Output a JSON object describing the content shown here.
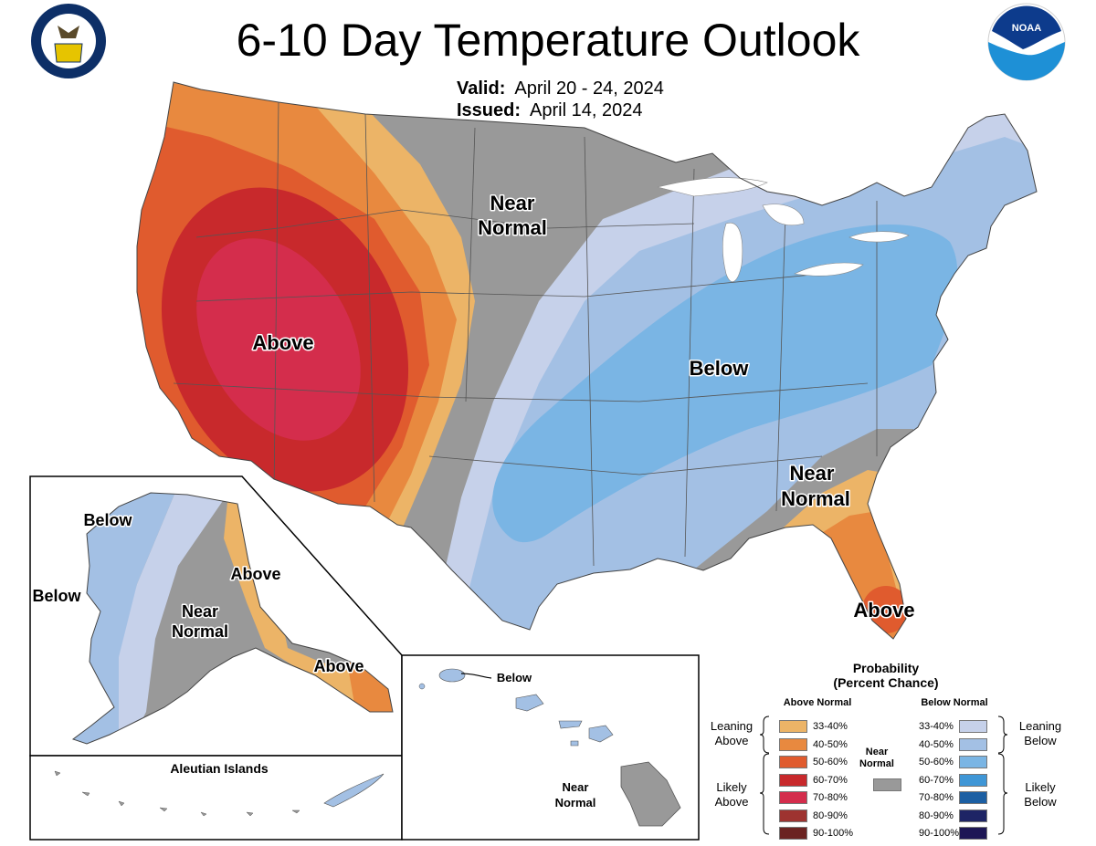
{
  "title": "6-10 Day Temperature Outlook",
  "valid_label": "Valid:",
  "valid_value": "April 20 - 24, 2024",
  "issued_label": "Issued:",
  "issued_value": "April 14, 2024",
  "logos": {
    "left": "doc-seal-icon",
    "right": "noaa-logo-icon",
    "noaa_text": "NOAA"
  },
  "map_labels": {
    "conus_above_west": "Above",
    "conus_near_normal_north_1": "Near",
    "conus_near_normal_north_2": "Normal",
    "conus_below": "Below",
    "conus_near_normal_se_1": "Near",
    "conus_near_normal_se_2": "Normal",
    "conus_above_florida": "Above",
    "ak_below_north": "Below",
    "ak_below_west": "Below",
    "ak_near_normal_1": "Near",
    "ak_near_normal_2": "Normal",
    "ak_above_east": "Above",
    "ak_above_panhandle": "Above",
    "aleutian_title": "Aleutian Islands",
    "hi_below": "Below",
    "hi_near_normal_1": "Near",
    "hi_near_normal_2": "Normal"
  },
  "legend": {
    "title_1": "Probability",
    "title_2": "(Percent Chance)",
    "above_header": "Above Normal",
    "below_header": "Below Normal",
    "near_header_1": "Near",
    "near_header_2": "Normal",
    "leaning_above_1": "Leaning",
    "leaning_above_2": "Above",
    "likely_above_1": "Likely",
    "likely_above_2": "Above",
    "leaning_below_1": "Leaning",
    "leaning_below_2": "Below",
    "likely_below_1": "Likely",
    "likely_below_2": "Below",
    "above": [
      {
        "label": "33-40%",
        "color": "#ecb467"
      },
      {
        "label": "40-50%",
        "color": "#e8893f"
      },
      {
        "label": "50-60%",
        "color": "#e05b2e"
      },
      {
        "label": "60-70%",
        "color": "#c8292c"
      },
      {
        "label": "70-80%",
        "color": "#d42d4c"
      },
      {
        "label": "80-90%",
        "color": "#9e3330"
      },
      {
        "label": "90-100%",
        "color": "#6b2321"
      }
    ],
    "below": [
      {
        "label": "33-40%",
        "color": "#c6d1ea"
      },
      {
        "label": "40-50%",
        "color": "#a3c0e4"
      },
      {
        "label": "50-60%",
        "color": "#7ab5e4"
      },
      {
        "label": "60-70%",
        "color": "#3f96d6"
      },
      {
        "label": "70-80%",
        "color": "#1c5fa3"
      },
      {
        "label": "80-90%",
        "color": "#1e2465"
      },
      {
        "label": "90-100%",
        "color": "#1d1655"
      }
    ],
    "near_color": "#999999"
  }
}
